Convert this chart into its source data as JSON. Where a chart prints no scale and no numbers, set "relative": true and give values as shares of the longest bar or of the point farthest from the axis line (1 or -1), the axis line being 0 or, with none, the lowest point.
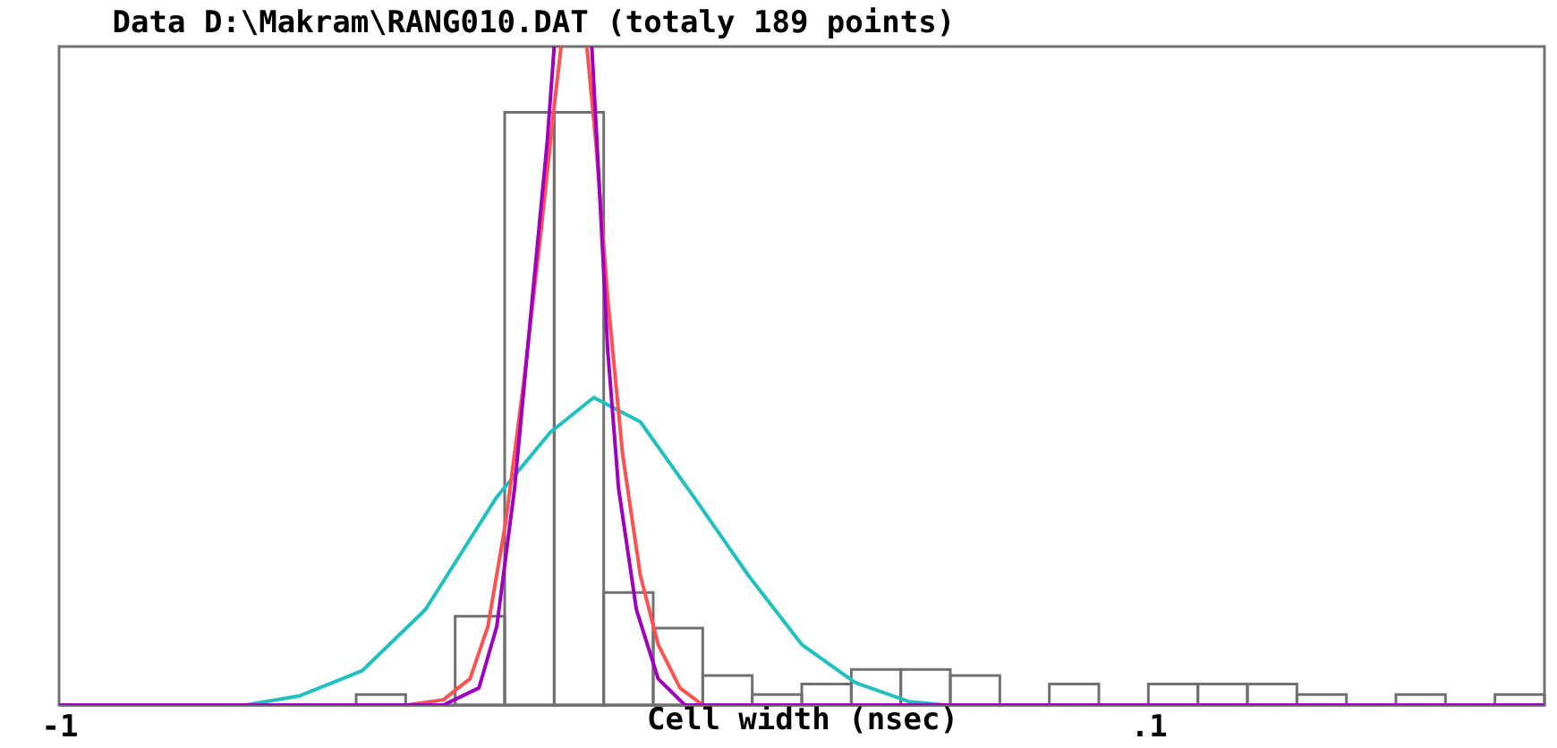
{
  "chart_data": {
    "type": "histogram",
    "title": "Data  D:\\Makram\\RANG010.DAT (totaly 189 points)",
    "xlabel": "Cell width   (nsec)",
    "relative": true,
    "bins": [
      -1,
      -0.95,
      -0.9,
      -0.85,
      -0.8,
      -0.75,
      -0.7,
      -0.65,
      -0.6,
      -0.55,
      -0.5,
      -0.45,
      -0.4,
      -0.35,
      -0.3,
      -0.25,
      -0.2,
      -0.15,
      -0.1,
      -0.05,
      0,
      0.05,
      0.1,
      0.15,
      0.2,
      0.25,
      0.3,
      0.35,
      0.4,
      0.45,
      0.5
    ],
    "values": [
      0,
      0,
      0,
      0,
      0,
      0,
      0.016,
      0,
      0.135,
      0.9,
      0.9,
      0.171,
      0.117,
      0.045,
      0.016,
      0.032,
      0.054,
      0.054,
      0.045,
      0,
      0.032,
      0,
      0.032,
      0.032,
      0.032,
      0.016,
      0,
      0.016,
      0,
      0.016
    ],
    "color": "#707070",
    "series": [
      {
        "type": "line",
        "color": "#20c0c0",
        "x": [
          -0.812,
          -0.757,
          -0.694,
          -0.63,
          -0.558,
          -0.504,
          -0.46,
          -0.413,
          -0.359,
          -0.304,
          -0.25,
          -0.196,
          -0.141,
          -0.105
        ],
        "values": [
          0,
          0.014,
          0.052,
          0.145,
          0.316,
          0.414,
          0.467,
          0.43,
          0.316,
          0.197,
          0.092,
          0.034,
          0.005,
          0
        ]
      },
      {
        "type": "line",
        "color": "#ff5050",
        "x": [
          -0.649,
          -0.612,
          -0.585,
          -0.567,
          -0.549,
          -0.531,
          -0.513,
          -0.5,
          -0.493,
          -0.48,
          -0.467,
          -0.458,
          -0.446,
          -0.431,
          -0.413,
          -0.395,
          -0.373,
          -0.35
        ],
        "values": [
          0,
          0.008,
          0.04,
          0.119,
          0.277,
          0.487,
          0.724,
          0.909,
          1,
          null,
          1,
          0.856,
          0.619,
          0.382,
          0.197,
          0.092,
          0.026,
          0
        ]
      },
      {
        "type": "line",
        "color": "#a000c0",
        "x": [
          -1,
          -0.612,
          -0.576,
          -0.558,
          -0.54,
          -0.522,
          -0.507,
          -0.5,
          -0.48,
          -0.462,
          -0.455,
          -0.446,
          -0.435,
          -0.417,
          -0.395,
          -0.368,
          0.5
        ],
        "values": [
          0,
          0,
          0.026,
          0.119,
          0.329,
          0.619,
          0.856,
          1,
          null,
          1,
          0.804,
          0.54,
          0.329,
          0.145,
          0.04,
          0,
          0
        ]
      }
    ],
    "xlim": [
      -1,
      0.5
    ],
    "xticks": [
      {
        "value": -1,
        "label": "-1"
      },
      {
        "value": 0.1,
        "label": ".1"
      }
    ],
    "grid": false
  }
}
